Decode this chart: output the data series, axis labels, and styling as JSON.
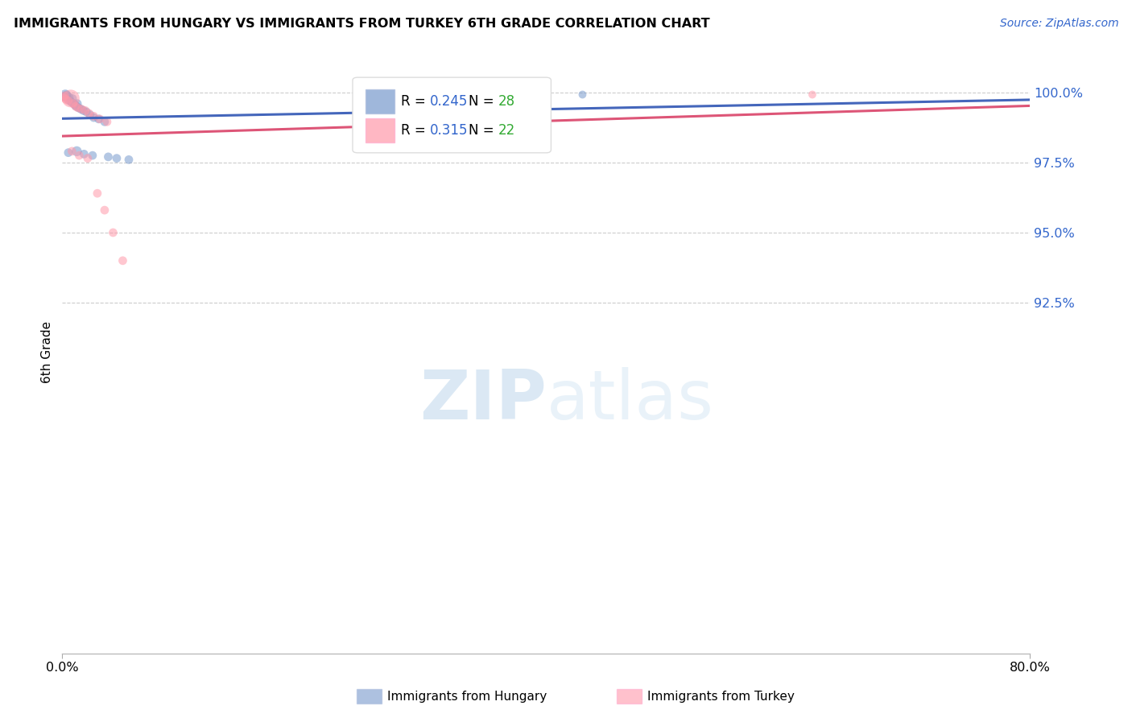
{
  "title": "IMMIGRANTS FROM HUNGARY VS IMMIGRANTS FROM TURKEY 6TH GRADE CORRELATION CHART",
  "source": "Source: ZipAtlas.com",
  "ylabel": "6th Grade",
  "yticks": [
    92.5,
    95.0,
    97.5,
    100.0
  ],
  "xlim": [
    0.0,
    80.0
  ],
  "ylim": [
    80.0,
    101.5
  ],
  "hungary_R": 0.245,
  "hungary_N": 28,
  "turkey_R": 0.315,
  "turkey_N": 22,
  "hungary_color": "#7799CC",
  "turkey_color": "#FF99AA",
  "hungary_line_color": "#4466BB",
  "turkey_line_color": "#DD5577",
  "R_color": "#3366CC",
  "N_color": "#33AA33",
  "watermark_color": "#DDEEFF",
  "background_color": "#FFFFFF",
  "grid_color": "#CCCCCC",
  "hungary_x": [
    0.15,
    0.25,
    0.35,
    0.45,
    0.55,
    0.65,
    0.75,
    0.85,
    0.95,
    1.05,
    1.15,
    1.25,
    1.35,
    1.55,
    1.75,
    2.0,
    2.3,
    2.6,
    3.0,
    3.5,
    0.5,
    1.2,
    1.8,
    2.5,
    3.8,
    4.5,
    5.5,
    43.0
  ],
  "hungary_y": [
    99.85,
    99.9,
    99.88,
    99.75,
    99.82,
    99.7,
    99.65,
    99.78,
    99.6,
    99.55,
    99.5,
    99.6,
    99.45,
    99.4,
    99.35,
    99.3,
    99.2,
    99.1,
    99.05,
    98.95,
    97.85,
    97.9,
    97.8,
    97.75,
    97.7,
    97.65,
    97.6,
    99.92
  ],
  "hungary_sizes": [
    60,
    100,
    80,
    60,
    70,
    60,
    60,
    60,
    60,
    60,
    60,
    60,
    60,
    60,
    60,
    60,
    60,
    60,
    60,
    60,
    60,
    80,
    60,
    60,
    60,
    60,
    60,
    50
  ],
  "turkey_x": [
    0.1,
    0.3,
    0.5,
    0.7,
    0.9,
    1.1,
    1.3,
    1.6,
    1.9,
    2.2,
    2.6,
    3.1,
    3.7,
    0.8,
    1.4,
    2.1,
    2.9,
    3.5,
    4.2,
    5.0,
    0.2,
    62.0
  ],
  "turkey_y": [
    99.82,
    99.75,
    99.7,
    99.78,
    99.6,
    99.5,
    99.45,
    99.4,
    99.35,
    99.25,
    99.15,
    99.05,
    98.95,
    97.9,
    97.75,
    97.65,
    96.4,
    95.8,
    95.0,
    94.0,
    99.88,
    99.92
  ],
  "turkey_sizes": [
    60,
    60,
    60,
    250,
    60,
    60,
    60,
    60,
    60,
    60,
    60,
    60,
    60,
    60,
    60,
    60,
    60,
    60,
    60,
    60,
    60,
    50
  ]
}
